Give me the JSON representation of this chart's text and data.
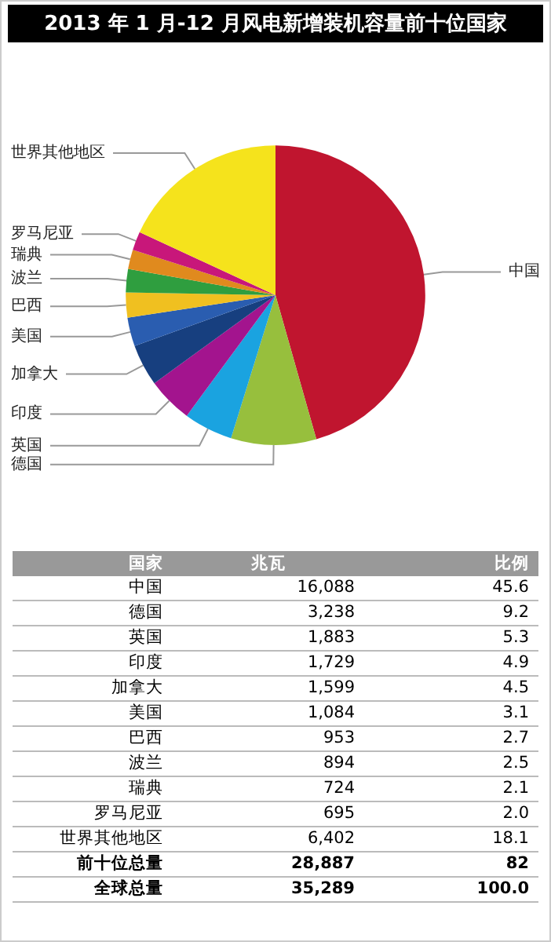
{
  "chart_data": [
    {
      "type": "pie",
      "title": "2013 年 1 月-12 月风电新增装机容量前十位国家",
      "categories": [
        "中国",
        "德国",
        "英国",
        "印度",
        "加拿大",
        "美国",
        "巴西",
        "波兰",
        "瑞典",
        "罗马尼亚",
        "世界其他地区"
      ],
      "values": [
        45.6,
        9.2,
        5.3,
        4.9,
        4.5,
        3.1,
        2.7,
        2.5,
        2.1,
        2.0,
        18.1
      ],
      "colors": [
        "#c0152f",
        "#97bf3d",
        "#1aa3e0",
        "#a3148e",
        "#173f7f",
        "#2a5db0",
        "#f0c020",
        "#2f9e3f",
        "#e08a1e",
        "#c8177a",
        "#f5e31c"
      ],
      "legend": false
    },
    {
      "type": "other",
      "categories": [
        "中国",
        "德国",
        "英国",
        "印度",
        "加拿大",
        "美国",
        "巴西",
        "波兰",
        "瑞典",
        "罗马尼亚",
        "世界其他地区"
      ],
      "data_labels": true,
      "series": [
        {
          "name": "兆瓦",
          "values": [
            16088,
            3238,
            1883,
            1729,
            1599,
            1084,
            953,
            894,
            724,
            695,
            6402
          ],
          "value_labels": [
            "16,088",
            "3,238",
            "1,883",
            "1,729",
            "1,599",
            "1,084",
            "953",
            "894",
            "724",
            "695",
            "6,402"
          ]
        },
        {
          "name": "比例",
          "values": [
            45.6,
            9.2,
            5.3,
            4.9,
            4.5,
            3.1,
            2.7,
            2.5,
            2.1,
            2.0,
            18.1
          ],
          "value_labels": [
            "45.6",
            "9.2",
            "5.3",
            "4.9",
            "4.5",
            "3.1",
            "2.7",
            "2.5",
            "2.1",
            "2.0",
            "18.1"
          ]
        }
      ],
      "annotations": [
        "国家",
        "前十位总量",
        "28,887",
        "82",
        "全球总量",
        "35,289",
        "100.0"
      ]
    }
  ]
}
